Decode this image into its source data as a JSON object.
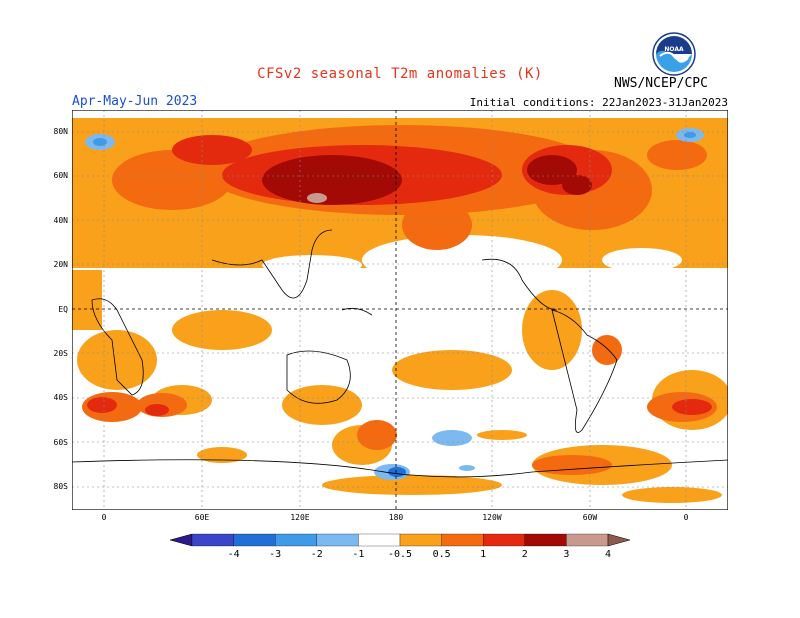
{
  "title": "CFSv2  seasonal  T2m  anomalies  (K)",
  "season": "Apr-May-Jun 2023",
  "initial_conditions": "Initial conditions: 22Jan2023-31Jan2023",
  "agency": "NWS/NCEP/CPC",
  "logo_text": "NOAA",
  "lat_labels": [
    "80N",
    "60N",
    "40N",
    "20N",
    "EQ",
    "20S",
    "40S",
    "60S",
    "80S"
  ],
  "lon_labels": [
    "0",
    "60E",
    "120E",
    "180",
    "120W",
    "60W",
    "0"
  ],
  "colorbar": {
    "labels": [
      "-4",
      "-3",
      "-2",
      "-1",
      "-0.5",
      "0.5",
      "1",
      "2",
      "3",
      "4"
    ],
    "colors": [
      "#2b1a8c",
      "#3a45c8",
      "#1f6fd6",
      "#3f9ae8",
      "#7bb9f0",
      "#ffffff",
      "#f9a11b",
      "#f46a10",
      "#e42a0e",
      "#a30a05",
      "#c89a8f",
      "#8a5a4e"
    ]
  },
  "legend_colors": {
    "warm_05_1": "#f9a11b",
    "warm_1_2": "#f46a10",
    "warm_2_3": "#e42a0e",
    "warm_3_4": "#a30a05",
    "warm_4plus": "#c89a8f",
    "cool_05_1": "#7bb9f0",
    "cool_1_2": "#3f9ae8",
    "cool_2_3": "#1f6fd6"
  }
}
